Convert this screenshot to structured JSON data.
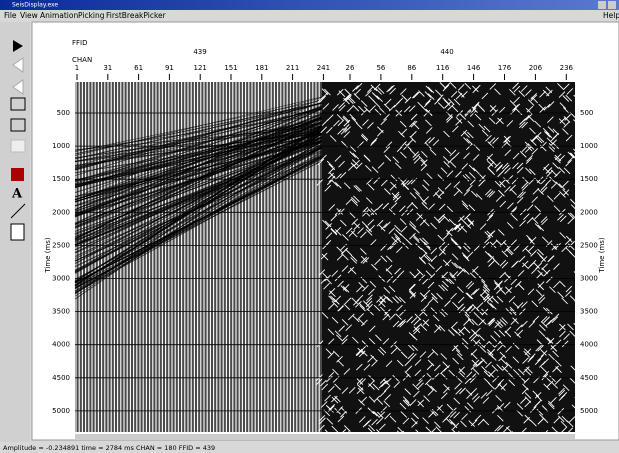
{
  "window": {
    "title": "SeisDisplay.exe"
  },
  "menu": [
    "File",
    "View",
    "Animation",
    "Picking",
    "FirstBreakPicker"
  ],
  "help": "Help",
  "plot": {
    "ffid_label": "FFID",
    "chan_label": "CHAN",
    "ffids": [
      439,
      440
    ],
    "channels": [
      [
        1,
        31,
        61,
        91,
        121,
        151,
        181,
        211,
        241
      ],
      [
        26,
        56,
        86,
        116,
        146,
        176,
        206,
        236
      ]
    ],
    "time_ticks": [
      500,
      1000,
      1500,
      2000,
      2500,
      3000,
      3500,
      4000,
      4500,
      5000
    ],
    "y_axis_label": "Time (ms)"
  },
  "status": "Amplitude = -0.234891  time = 2784 ms  CHAN = 180  FFID = 439"
}
